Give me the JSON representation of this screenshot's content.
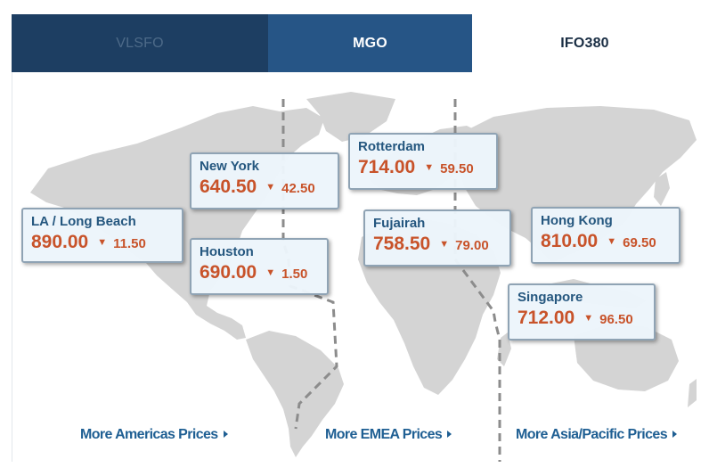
{
  "tabs": [
    {
      "label": "VLSFO"
    },
    {
      "label": "MGO"
    },
    {
      "label": "IFO380"
    }
  ],
  "prices": {
    "la_long_beach": {
      "port": "LA / Long Beach",
      "price": "890.00",
      "change": "11.50"
    },
    "new_york": {
      "port": "New York",
      "price": "640.50",
      "change": "42.50"
    },
    "houston": {
      "port": "Houston",
      "price": "690.00",
      "change": "1.50"
    },
    "rotterdam": {
      "port": "Rotterdam",
      "price": "714.00",
      "change": "59.50"
    },
    "fujairah": {
      "port": "Fujairah",
      "price": "758.50",
      "change": "79.00"
    },
    "hong_kong": {
      "port": "Hong Kong",
      "price": "810.00",
      "change": "69.50"
    },
    "singapore": {
      "port": "Singapore",
      "price": "712.00",
      "change": "96.50"
    }
  },
  "links": {
    "americas": "More Americas Prices",
    "emea": "More EMEA Prices",
    "asia": "More Asia/Pacific Prices"
  },
  "colors": {
    "tab_dark": "#1d3e62",
    "tab_active": "#265586",
    "price": "#c8532a",
    "port": "#25577f",
    "link": "#1f5f93",
    "map": "#d2d2d2"
  },
  "icons": {
    "down": "down-triangle-icon",
    "link": "right-triangle-icon"
  }
}
